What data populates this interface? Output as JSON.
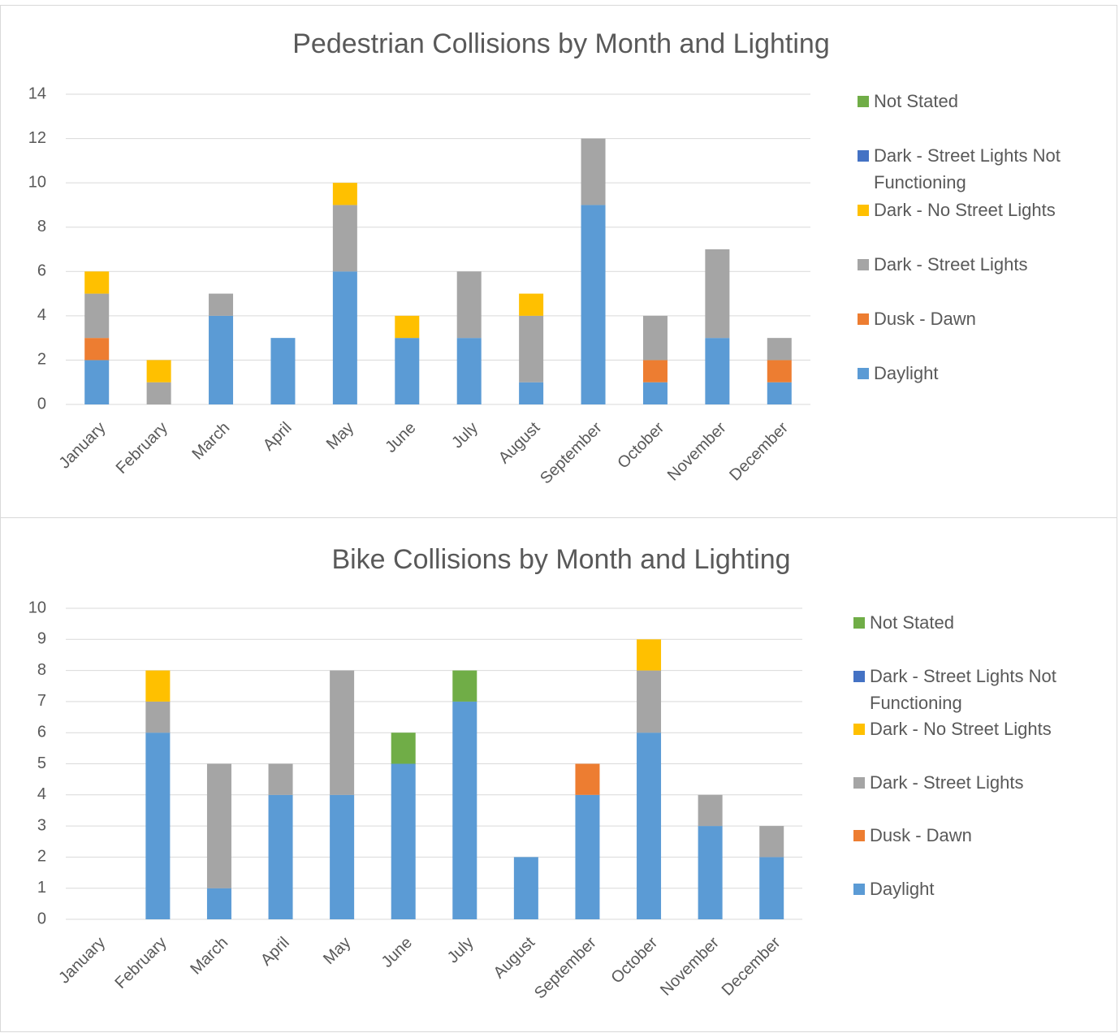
{
  "chart_data": [
    {
      "type": "bar",
      "stacked": true,
      "title": "Pedestrian Collisions by Month and Lighting",
      "categories": [
        "January",
        "February",
        "March",
        "April",
        "May",
        "June",
        "July",
        "August",
        "September",
        "October",
        "November",
        "December"
      ],
      "series": [
        {
          "name": "Daylight",
          "color": "#5b9bd5",
          "values": [
            2,
            0,
            4,
            3,
            6,
            3,
            3,
            1,
            9,
            1,
            3,
            1
          ]
        },
        {
          "name": "Dusk - Dawn",
          "color": "#ed7d31",
          "values": [
            1,
            0,
            0,
            0,
            0,
            0,
            0,
            0,
            0,
            1,
            0,
            1
          ]
        },
        {
          "name": "Dark - Street Lights",
          "color": "#a5a5a5",
          "values": [
            2,
            1,
            1,
            0,
            3,
            0,
            3,
            3,
            3,
            2,
            4,
            1
          ]
        },
        {
          "name": "Dark - No Street Lights",
          "color": "#ffc000",
          "values": [
            1,
            1,
            0,
            0,
            1,
            1,
            0,
            1,
            0,
            0,
            0,
            0
          ]
        },
        {
          "name": "Dark - Street Lights Not Functioning",
          "color": "#4472c4",
          "values": [
            0,
            0,
            0,
            0,
            0,
            0,
            0,
            0,
            0,
            0,
            0,
            0
          ]
        },
        {
          "name": "Not Stated",
          "color": "#70ad47",
          "values": [
            0,
            0,
            0,
            0,
            0,
            0,
            0,
            0,
            0,
            0,
            0,
            0
          ]
        }
      ],
      "ylim": [
        0,
        14
      ],
      "yticks": [
        0,
        2,
        4,
        6,
        8,
        10,
        12,
        14
      ],
      "grid": true,
      "legend": "right"
    },
    {
      "type": "bar",
      "stacked": true,
      "title": "Bike Collisions by Month and Lighting",
      "categories": [
        "January",
        "February",
        "March",
        "April",
        "May",
        "June",
        "July",
        "August",
        "September",
        "October",
        "November",
        "December"
      ],
      "series": [
        {
          "name": "Daylight",
          "color": "#5b9bd5",
          "values": [
            0,
            6,
            1,
            4,
            4,
            5,
            7,
            2,
            4,
            6,
            3,
            2
          ]
        },
        {
          "name": "Dusk - Dawn",
          "color": "#ed7d31",
          "values": [
            0,
            0,
            0,
            0,
            0,
            0,
            0,
            0,
            1,
            0,
            0,
            0
          ]
        },
        {
          "name": "Dark - Street Lights",
          "color": "#a5a5a5",
          "values": [
            0,
            1,
            4,
            1,
            4,
            0,
            0,
            0,
            0,
            2,
            1,
            1
          ]
        },
        {
          "name": "Dark - No Street Lights",
          "color": "#ffc000",
          "values": [
            0,
            1,
            0,
            0,
            0,
            0,
            0,
            0,
            0,
            1,
            0,
            0
          ]
        },
        {
          "name": "Dark - Street Lights Not Functioning",
          "color": "#4472c4",
          "values": [
            0,
            0,
            0,
            0,
            0,
            0,
            0,
            0,
            0,
            0,
            0,
            0
          ]
        },
        {
          "name": "Not Stated",
          "color": "#70ad47",
          "values": [
            0,
            0,
            0,
            0,
            0,
            1,
            1,
            0,
            0,
            0,
            0,
            0
          ]
        }
      ],
      "ylim": [
        0,
        10
      ],
      "yticks": [
        0,
        1,
        2,
        3,
        4,
        5,
        6,
        7,
        8,
        9,
        10
      ],
      "grid": true,
      "legend": "right"
    }
  ]
}
